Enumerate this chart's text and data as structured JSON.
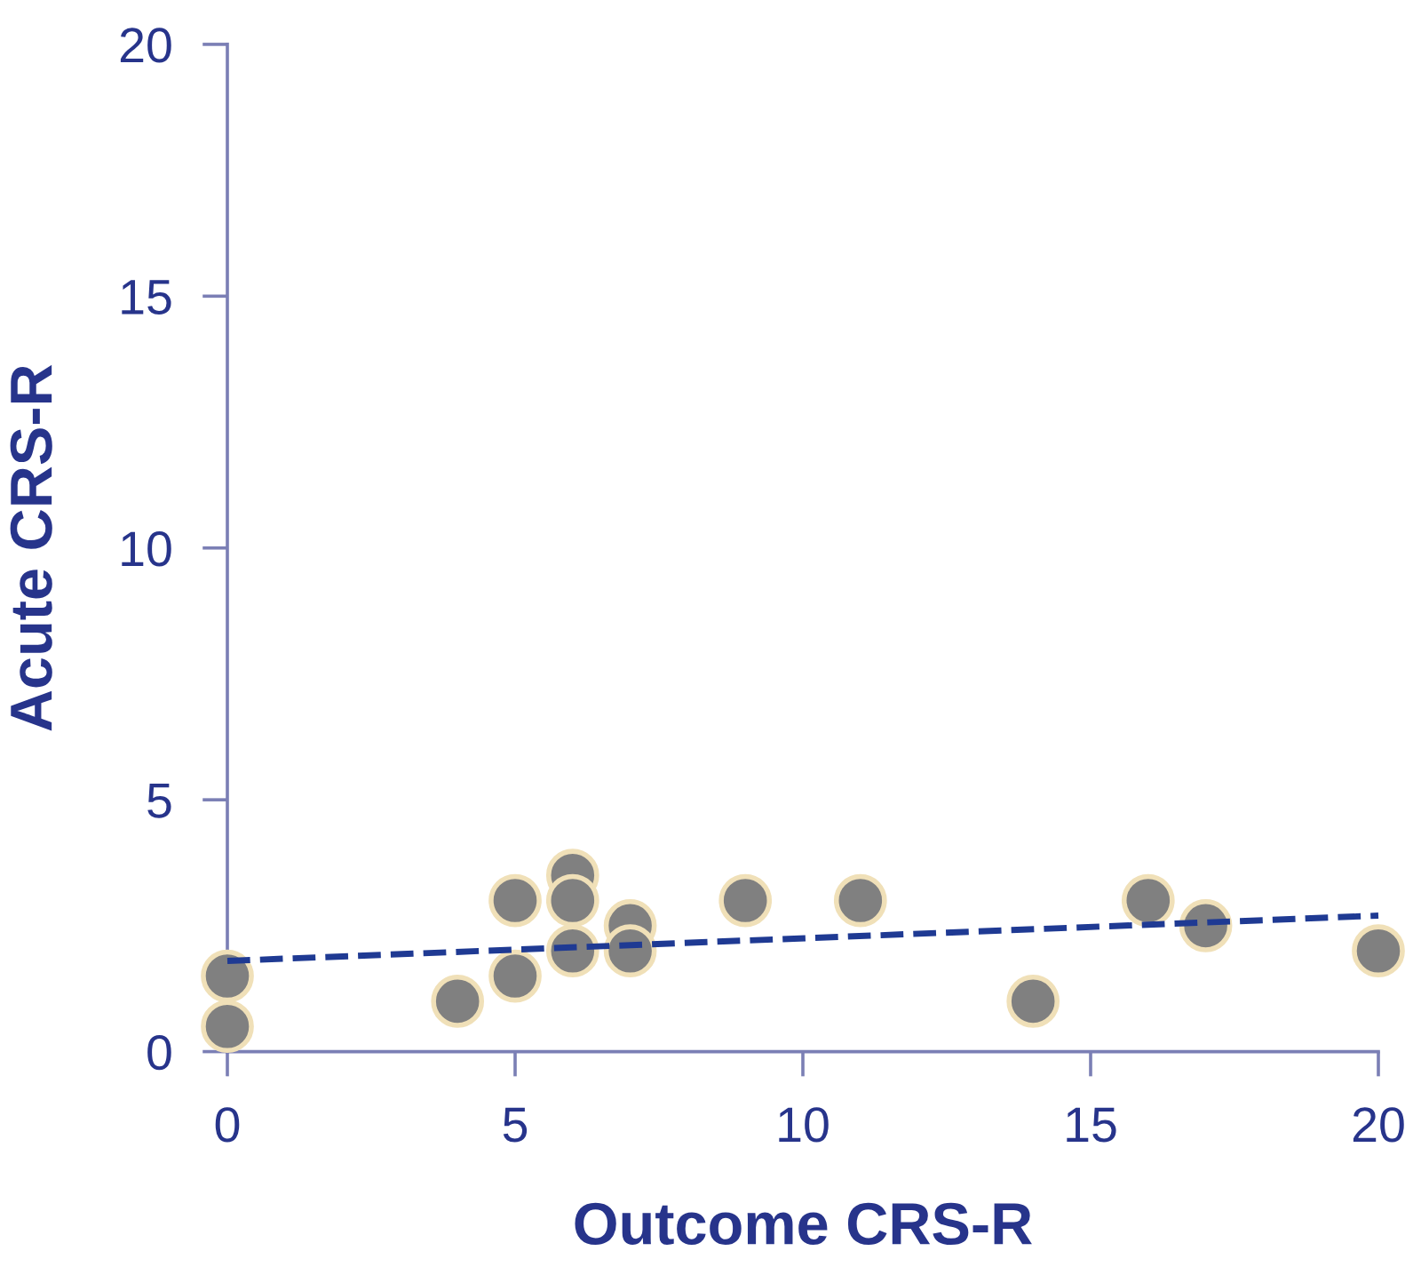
{
  "chart_data": {
    "type": "scatter",
    "xlabel": "Outcome CRS-R",
    "ylabel": "Acute CRS-R",
    "xlim": [
      0,
      20
    ],
    "ylim": [
      0,
      20
    ],
    "xticks": [
      0,
      5,
      10,
      15,
      20
    ],
    "yticks": [
      0,
      5,
      10,
      15,
      20
    ],
    "grid": false,
    "series": [
      {
        "color": "#808080",
        "marker": "circle",
        "x": [
          0,
          0,
          4,
          5,
          5,
          6,
          6,
          6,
          7,
          7,
          9,
          11,
          14,
          16,
          17,
          20
        ],
        "values": [
          1.5,
          0.5,
          1,
          3,
          1.5,
          3.5,
          3,
          2,
          2.5,
          2,
          3,
          3,
          1,
          3,
          2.5,
          2
        ]
      },
      {
        "type": "line",
        "color": "#1f3a93",
        "line_style": "dashed",
        "x": [
          0,
          20
        ],
        "values": [
          1.8,
          2.7
        ]
      }
    ]
  }
}
